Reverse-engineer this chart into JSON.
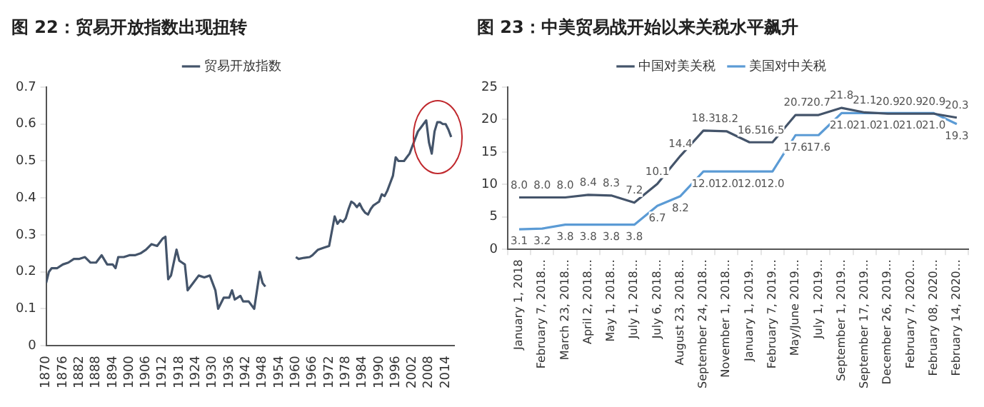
{
  "chart_data": [
    {
      "type": "line",
      "title": "图 22：贸易开放指数出现扭转",
      "legend": "top",
      "x": [
        1870,
        1871,
        1872,
        1874,
        1876,
        1878,
        1880,
        1882,
        1884,
        1886,
        1888,
        1890,
        1892,
        1894,
        1895,
        1896,
        1898,
        1900,
        1902,
        1904,
        1906,
        1908,
        1910,
        1912,
        1913,
        1914,
        1915,
        1917,
        1918,
        1920,
        1921,
        1923,
        1925,
        1927,
        1929,
        1931,
        1932,
        1934,
        1936,
        1937,
        1938,
        1940,
        1941,
        1943,
        1945,
        1947,
        1948,
        1949,
        1955,
        1960,
        1961,
        1963,
        1965,
        1966,
        1968,
        1970,
        1972,
        1973,
        1974,
        1975,
        1976,
        1977,
        1978,
        1979,
        1980,
        1981,
        1982,
        1983,
        1984,
        1985,
        1986,
        1987,
        1988,
        1989,
        1990,
        1991,
        1992,
        1993,
        1994,
        1995,
        1996,
        1997,
        1998,
        1999,
        2000,
        2001,
        2002,
        2003,
        2004,
        2005,
        2006,
        2007,
        2008,
        2009,
        2010,
        2011,
        2012,
        2013,
        2014,
        2015,
        2016
      ],
      "series": [
        {
          "name": "贸易开放指数",
          "color": "#44546a",
          "values": [
            0.17,
            0.2,
            0.21,
            0.21,
            0.22,
            0.225,
            0.235,
            0.235,
            0.24,
            0.225,
            0.225,
            0.245,
            0.22,
            0.22,
            0.21,
            0.24,
            0.24,
            0.245,
            0.245,
            0.25,
            0.26,
            0.275,
            0.27,
            0.29,
            0.295,
            0.18,
            0.19,
            0.26,
            0.23,
            0.22,
            0.15,
            0.17,
            0.19,
            0.185,
            0.19,
            0.15,
            0.1,
            0.13,
            0.13,
            0.15,
            0.125,
            0.135,
            0.12,
            0.12,
            0.1,
            0.2,
            0.17,
            0.16,
            null,
            0.24,
            0.235,
            0.238,
            0.24,
            0.245,
            0.26,
            0.265,
            0.27,
            0.31,
            0.35,
            0.33,
            0.34,
            0.335,
            0.345,
            0.37,
            0.39,
            0.385,
            0.375,
            0.385,
            0.37,
            0.36,
            0.355,
            0.37,
            0.38,
            0.385,
            0.39,
            0.41,
            0.405,
            0.42,
            0.44,
            0.46,
            0.51,
            0.5,
            0.5,
            0.5,
            0.51,
            0.52,
            0.54,
            0.56,
            0.58,
            0.59,
            0.6,
            0.61,
            0.55,
            0.52,
            0.58,
            0.605,
            0.605,
            0.6,
            0.6,
            0.585,
            0.565
          ]
        }
      ],
      "xlim": [
        1870,
        2017
      ],
      "xticks": [
        1870,
        1876,
        1882,
        1888,
        1894,
        1900,
        1906,
        1912,
        1918,
        1924,
        1930,
        1936,
        1942,
        1948,
        1954,
        1960,
        1966,
        1972,
        1978,
        1984,
        1990,
        1996,
        2002,
        2008,
        2014
      ],
      "ylim": [
        0,
        0.7
      ],
      "yticks": [
        0,
        0.1,
        0.2,
        0.3,
        0.4,
        0.5,
        0.6,
        0.7
      ]
    },
    {
      "type": "line",
      "title": "图 23：中美贸易战开始以来关税水平飙升",
      "legend": "top",
      "categories": [
        "January 1, 2018",
        "February 7, 2018…",
        "March 23, 2018…",
        "April 2, 2018…",
        "May 1, 2018…",
        "July 1, 2018…",
        "July 6, 2018…",
        "August 23, 2018…",
        "September 24, 2018…",
        "November 1, 2018…",
        "January 1, 2019…",
        "February 7, 2019…",
        "May/June 2019…",
        "July 1, 2019…",
        "September 1, 2019…",
        "September 17, 2019…",
        "December 26, 2019…",
        "February 7, 2020…",
        "February 08, 2020…",
        "February 14, 2020…"
      ],
      "series": [
        {
          "name": "中国对美关税",
          "color": "#44546a",
          "values": [
            8.0,
            8.0,
            8.0,
            8.4,
            8.3,
            7.2,
            10.1,
            14.4,
            18.3,
            18.2,
            16.5,
            16.5,
            20.7,
            20.7,
            21.8,
            21.1,
            20.9,
            20.9,
            20.9,
            20.3
          ],
          "value_labels": [
            "8.0",
            "8.0",
            "8.0",
            "8.4",
            "8.3",
            "7.2",
            "10.1",
            "14.4",
            "18.3",
            "18.2",
            "16.5",
            "16.5",
            "20.7",
            "20.7",
            "21.8",
            "21.1",
            "20.9",
            "20.9",
            "20.9",
            "20.3"
          ]
        },
        {
          "name": "美国对中关税",
          "color": "#5b9bd5",
          "values": [
            3.1,
            3.2,
            3.8,
            3.8,
            3.8,
            3.8,
            6.7,
            8.2,
            12.0,
            12.0,
            12.0,
            12.0,
            17.6,
            17.6,
            21.0,
            21.0,
            21.0,
            21.0,
            21.0,
            19.3
          ],
          "value_labels": [
            "3.1",
            "3.2",
            "3.8",
            "3.8",
            "3.8",
            "3.8",
            "6.7",
            "8.2",
            "12.0",
            "12.0",
            "12.0",
            "12.0",
            "17.6",
            "17.6",
            "21.0",
            "21.0",
            "21.0",
            "21.0",
            "21.0",
            "19.3"
          ]
        }
      ],
      "ylim": [
        0,
        25
      ],
      "yticks": [
        0,
        5,
        10,
        15,
        20,
        25
      ]
    }
  ]
}
